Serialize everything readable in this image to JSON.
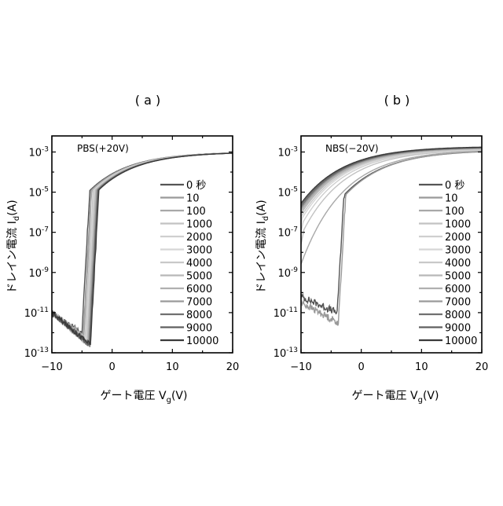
{
  "chart_data": [
    {
      "panel_label": "( a )",
      "type": "line",
      "annotation": "PBS(+20V)",
      "xlabel_main": "ゲート電圧 V",
      "xlabel_sub": "g",
      "xlabel_unit": "(V)",
      "ylabel_main": "ドレイン電流 I",
      "ylabel_sub": "d",
      "ylabel_unit": "(A)",
      "x_ticks": [
        "−10",
        "0",
        "10",
        "20"
      ],
      "x_tick_values": [
        -10,
        0,
        10,
        20
      ],
      "y_ticks": [
        {
          "base": "10",
          "exp": "-3",
          "value": -3
        },
        {
          "base": "10",
          "exp": "-5",
          "value": -5
        },
        {
          "base": "10",
          "exp": "-7",
          "value": -7
        },
        {
          "base": "10",
          "exp": "-9",
          "value": -9
        },
        {
          "base": "10",
          "exp": "-11",
          "value": -11
        },
        {
          "base": "10",
          "exp": "-13",
          "value": -13
        }
      ],
      "xlim": [
        -10,
        20
      ],
      "ylim_log10": [
        -13,
        -2.2
      ],
      "yscale": "log",
      "legend_placement": "center-right",
      "legend_entries": [
        "0 秒",
        "10",
        "100",
        "1000",
        "2000",
        "3000",
        "4000",
        "5000",
        "6000",
        "7000",
        "8000",
        "9000",
        "10000"
      ],
      "series_colors": [
        "#555555",
        "#999999",
        "#a8a8a8",
        "#c2c2c2",
        "#cfcfcf",
        "#d6d6d6",
        "#c8c8c8",
        "#b8b8b8",
        "#b0b0b0",
        "#9a9a9a",
        "#707070",
        "#606060",
        "#3a3a3a"
      ],
      "series": [
        {
          "name": "0 秒",
          "vth": -4.6,
          "vmin": -5.0,
          "floor": -12.0,
          "sat_offset": 0.0
        },
        {
          "name": "10",
          "vth": -4.4,
          "vmin": -4.8,
          "floor": -12.1,
          "sat_offset": 0.0
        },
        {
          "name": "100",
          "vth": -4.3,
          "vmin": -4.7,
          "floor": -12.2,
          "sat_offset": 0.0
        },
        {
          "name": "1000",
          "vth": -4.1,
          "vmin": -4.5,
          "floor": -12.3,
          "sat_offset": 0.0
        },
        {
          "name": "2000",
          "vth": -4.0,
          "vmin": -4.4,
          "floor": -12.4,
          "sat_offset": 0.0
        },
        {
          "name": "3000",
          "vth": -3.9,
          "vmin": -4.3,
          "floor": -12.4,
          "sat_offset": 0.0
        },
        {
          "name": "4000",
          "vth": -3.8,
          "vmin": -4.2,
          "floor": -12.5,
          "sat_offset": 0.0
        },
        {
          "name": "5000",
          "vth": -3.7,
          "vmin": -4.1,
          "floor": -12.5,
          "sat_offset": 0.0
        },
        {
          "name": "6000",
          "vth": -3.6,
          "vmin": -4.0,
          "floor": -12.6,
          "sat_offset": 0.0
        },
        {
          "name": "7000",
          "vth": -3.5,
          "vmin": -3.9,
          "floor": -12.6,
          "sat_offset": 0.0
        },
        {
          "name": "8000",
          "vth": -3.4,
          "vmin": -3.8,
          "floor": -12.6,
          "sat_offset": 0.0
        },
        {
          "name": "9000",
          "vth": -3.3,
          "vmin": -3.7,
          "floor": -12.6,
          "sat_offset": 0.0
        },
        {
          "name": "10000",
          "vth": -3.2,
          "vmin": -3.6,
          "floor": -12.6,
          "sat_offset": 0.0
        }
      ],
      "sat_current_log10_at_20V": -3.0
    },
    {
      "panel_label": "( b )",
      "type": "line",
      "annotation": "NBS(−20V)",
      "xlabel_main": "ゲート電圧 V",
      "xlabel_sub": "g",
      "xlabel_unit": "(V)",
      "ylabel_main": "ドレイン電流 I",
      "ylabel_sub": "d",
      "ylabel_unit": "(A)",
      "x_ticks": [
        "−10",
        "0",
        "10",
        "20"
      ],
      "x_tick_values": [
        -10,
        0,
        10,
        20
      ],
      "y_ticks": [
        {
          "base": "10",
          "exp": "-3",
          "value": -3
        },
        {
          "base": "10",
          "exp": "-5",
          "value": -5
        },
        {
          "base": "10",
          "exp": "-7",
          "value": -7
        },
        {
          "base": "10",
          "exp": "-9",
          "value": -9
        },
        {
          "base": "10",
          "exp": "-11",
          "value": -11
        },
        {
          "base": "10",
          "exp": "-13",
          "value": -13
        }
      ],
      "xlim": [
        -10,
        20
      ],
      "ylim_log10": [
        -13,
        -2.2
      ],
      "yscale": "log",
      "legend_placement": "center-right",
      "legend_entries": [
        "0 秒",
        "10",
        "100",
        "1000",
        "2000",
        "3000",
        "4000",
        "5000",
        "6000",
        "7000",
        "8000",
        "9000",
        "10000"
      ],
      "series_colors": [
        "#555555",
        "#999999",
        "#a8a8a8",
        "#c2c2c2",
        "#cfcfcf",
        "#d6d6d6",
        "#c8c8c8",
        "#b8b8b8",
        "#b0b0b0",
        "#9a9a9a",
        "#707070",
        "#606060",
        "#3a3a3a"
      ],
      "series": [
        {
          "name": "0 秒",
          "vth": -3.9,
          "vmin": -4.0,
          "floor": -11.0,
          "start_log10": -10.2
        },
        {
          "name": "10",
          "vth": -3.6,
          "vmin": -3.8,
          "floor": -11.5,
          "start_log10": -10.5
        },
        {
          "name": "100",
          "vth": -5.0,
          "vmin": -6.5,
          "floor": -9.5,
          "start_log10": -8.0
        },
        {
          "name": "1000",
          "vth": -7.0,
          "vmin": -9.5,
          "floor": -7.6,
          "start_log10": -7.6
        },
        {
          "name": "2000",
          "vth": -7.8,
          "vmin": -9.8,
          "floor": -7.0,
          "start_log10": -7.0
        },
        {
          "name": "3000",
          "vth": -8.3,
          "vmin": -10.0,
          "floor": -6.6,
          "start_log10": -6.6
        },
        {
          "name": "4000",
          "vth": -8.6,
          "vmin": -10.0,
          "floor": -6.3,
          "start_log10": -6.3
        },
        {
          "name": "5000",
          "vth": -8.9,
          "vmin": -10.0,
          "floor": -6.0,
          "start_log10": -6.0
        },
        {
          "name": "6000",
          "vth": -9.1,
          "vmin": -10.0,
          "floor": -5.8,
          "start_log10": -5.8
        },
        {
          "name": "7000",
          "vth": -9.3,
          "vmin": -10.0,
          "floor": -5.6,
          "start_log10": -5.6
        },
        {
          "name": "8000",
          "vth": -9.5,
          "vmin": -10.0,
          "floor": -5.4,
          "start_log10": -5.4
        },
        {
          "name": "9000",
          "vth": -9.7,
          "vmin": -10.0,
          "floor": -5.2,
          "start_log10": -5.2
        },
        {
          "name": "10000",
          "vth": -9.9,
          "vmin": -10.0,
          "floor": -5.0,
          "start_log10": -5.0
        }
      ],
      "sat_current_log10_at_20V": -2.9
    }
  ]
}
